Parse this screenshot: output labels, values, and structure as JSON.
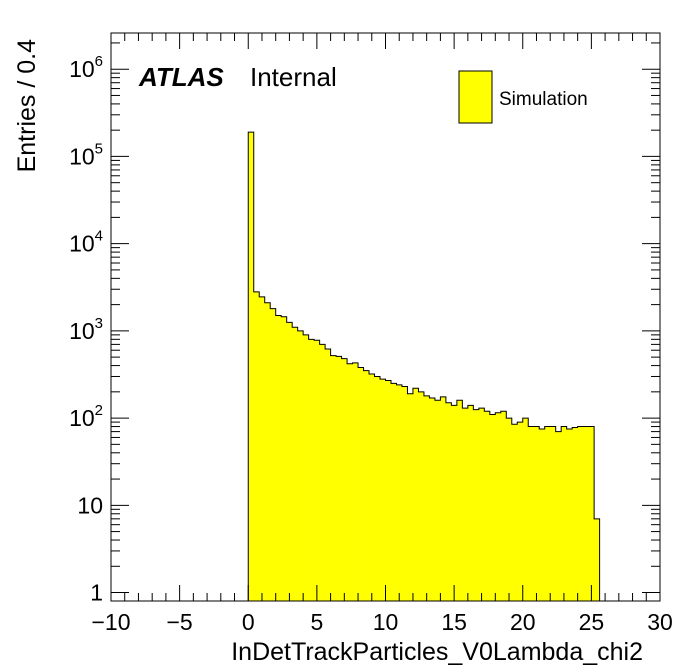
{
  "chart_data": {
    "type": "bar",
    "style": "histogram",
    "title": "",
    "xlabel": "InDetTrackParticles_V0Lambda_chi2",
    "ylabel": "Entries / 0.4",
    "xlim": [
      -10,
      30
    ],
    "ylim": [
      0.8,
      2600000
    ],
    "log_y": true,
    "bin_width": 0.4,
    "fill_color": "#ffff00",
    "edge_color": "#000000",
    "x_ticks": [
      "−10",
      "−5",
      "0",
      "5",
      "10",
      "15",
      "20",
      "25",
      "30"
    ],
    "x_tick_values": [
      -10,
      -5,
      0,
      5,
      10,
      15,
      20,
      25,
      30
    ],
    "y_ticks": [
      {
        "value": 1,
        "base": "1",
        "exp": ""
      },
      {
        "value": 10,
        "base": "10",
        "exp": ""
      },
      {
        "value": 100,
        "base": "10",
        "exp": "2"
      },
      {
        "value": 1000,
        "base": "10",
        "exp": "3"
      },
      {
        "value": 10000,
        "base": "10",
        "exp": "4"
      },
      {
        "value": 100000,
        "base": "10",
        "exp": "5"
      },
      {
        "value": 1000000,
        "base": "10",
        "exp": "6"
      }
    ],
    "grid": false,
    "legend_position": "top-right",
    "series": [
      {
        "name": "Simulation",
        "bin_start": 0.0,
        "values": [
          190000,
          2800,
          2450,
          2100,
          1800,
          1500,
          1450,
          1250,
          1100,
          1000,
          900,
          800,
          780,
          700,
          620,
          520,
          510,
          480,
          420,
          430,
          380,
          350,
          320,
          300,
          280,
          270,
          250,
          240,
          230,
          190,
          220,
          200,
          180,
          170,
          160,
          175,
          150,
          140,
          160,
          130,
          140,
          125,
          130,
          120,
          110,
          115,
          120,
          100,
          85,
          90,
          100,
          80,
          80,
          75,
          80,
          80,
          70,
          80,
          75,
          78,
          80,
          80,
          80,
          7,
          0
        ]
      }
    ]
  },
  "annotations": {
    "experiment": "ATLAS",
    "status": "Internal"
  },
  "legend": {
    "entries": [
      {
        "label": "Simulation",
        "color": "#ffff00"
      }
    ]
  }
}
